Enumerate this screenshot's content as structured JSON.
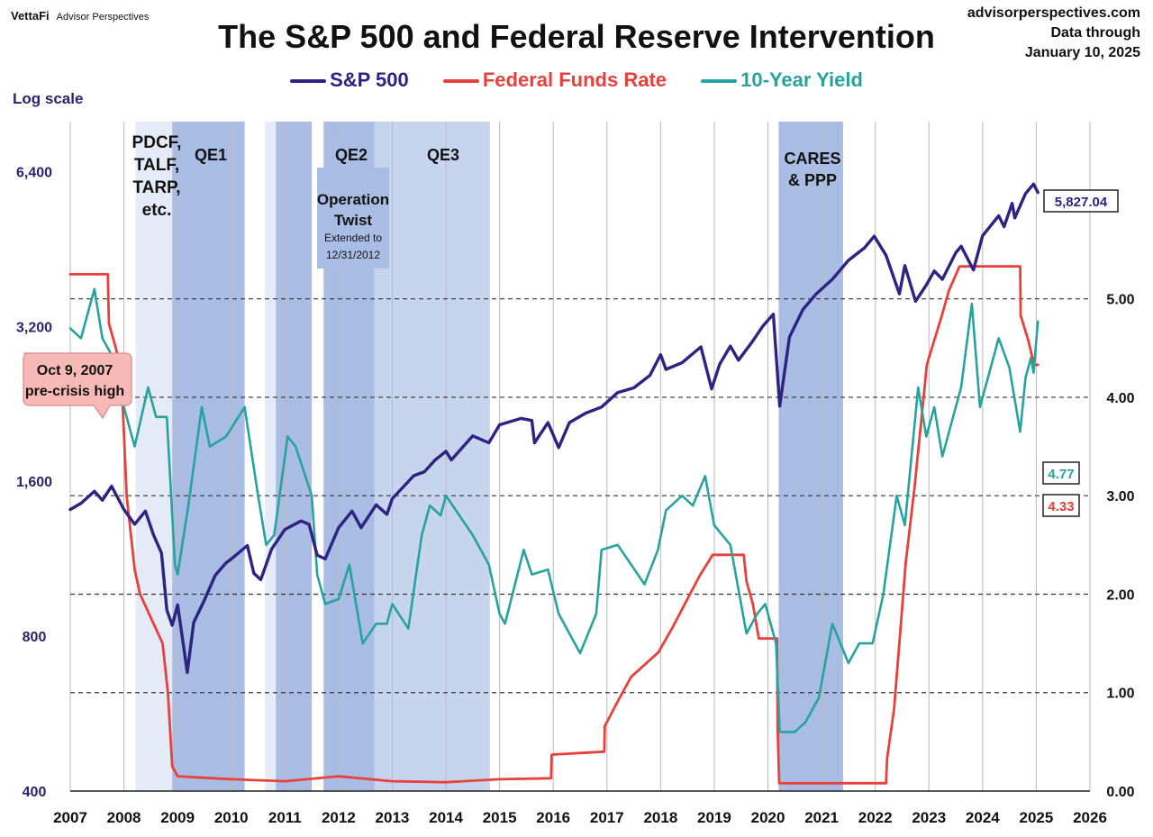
{
  "header": {
    "logo_brand": "VettaFi",
    "logo_sub": "Advisor Perspectives",
    "source_site": "advisorperspectives.com",
    "data_through_label": "Data through",
    "data_through_date": "January 10, 2025",
    "log_scale_label": "Log scale"
  },
  "colors": {
    "sp500": "#2e2382",
    "fed": "#e8403a",
    "yield": "#27a39f",
    "band_light": "#e4eaf6",
    "band_mid": "#c6d4ee",
    "band_dark": "#a9bde4"
  },
  "chart_data": {
    "type": "line",
    "title": "The S&P 500 and Federal Reserve Intervention",
    "x_ticks": [
      "2007",
      "2008",
      "2009",
      "2010",
      "2011",
      "2012",
      "2013",
      "2014",
      "2015",
      "2016",
      "2017",
      "2018",
      "2019",
      "2020",
      "2021",
      "2022",
      "2023",
      "2024",
      "2025",
      "2026"
    ],
    "x_range": [
      2007,
      2026
    ],
    "left_axis": {
      "scale": "log",
      "range": [
        400,
        8000
      ],
      "ticks": [
        "400",
        "800",
        "1,600",
        "3,200",
        "6,400"
      ],
      "tick_values": [
        400,
        800,
        1600,
        3200,
        6400
      ]
    },
    "right_axis": {
      "range": [
        0,
        6.8
      ],
      "ticks": [
        "0.00",
        "1.00",
        "2.00",
        "3.00",
        "4.00",
        "5.00"
      ],
      "tick_values": [
        0,
        1,
        2,
        3,
        4,
        5
      ],
      "dashed_grid": [
        1,
        2,
        3,
        4,
        5
      ]
    },
    "legend": [
      "S&P 500",
      "Federal Funds Rate",
      "10-Year Yield"
    ],
    "bands": [
      {
        "start": 2008.22,
        "end": 2008.9,
        "shade": "light"
      },
      {
        "start": 2008.9,
        "end": 2010.25,
        "shade": "dark"
      },
      {
        "start": 2010.63,
        "end": 2010.83,
        "shade": "light"
      },
      {
        "start": 2010.83,
        "end": 2011.5,
        "shade": "dark"
      },
      {
        "start": 2011.72,
        "end": 2012.67,
        "shade": "dark"
      },
      {
        "start": 2012.67,
        "end": 2014.82,
        "shade": "mid"
      },
      {
        "start": 2020.2,
        "end": 2021.4,
        "shade": "dark"
      }
    ],
    "annotations": {
      "pdcf": [
        "PDCF,",
        "TALF,",
        "TARP,",
        "etc."
      ],
      "qe1": "QE1",
      "qe2": "QE2",
      "qe3": "QE3",
      "twist": [
        "Operation",
        "Twist"
      ],
      "twist_sub": [
        "Extended to",
        "12/31/2012"
      ],
      "cares": [
        "CARES",
        "& PPP"
      ],
      "precrisis": [
        "Oct 9, 2007",
        "pre-crisis high"
      ],
      "end_sp": "5,827.04",
      "end_yield": "4.77",
      "end_fed": "4.33"
    },
    "series": [
      {
        "name": "S&P 500",
        "axis": "left",
        "points": [
          [
            2007.0,
            1410
          ],
          [
            2007.2,
            1450
          ],
          [
            2007.45,
            1530
          ],
          [
            2007.6,
            1470
          ],
          [
            2007.77,
            1565
          ],
          [
            2008.0,
            1410
          ],
          [
            2008.2,
            1320
          ],
          [
            2008.4,
            1400
          ],
          [
            2008.55,
            1260
          ],
          [
            2008.7,
            1160
          ],
          [
            2008.8,
            900
          ],
          [
            2008.9,
            840
          ],
          [
            2009.0,
            920
          ],
          [
            2009.1,
            780
          ],
          [
            2009.18,
            680
          ],
          [
            2009.3,
            850
          ],
          [
            2009.5,
            940
          ],
          [
            2009.7,
            1050
          ],
          [
            2009.9,
            1110
          ],
          [
            2010.0,
            1130
          ],
          [
            2010.3,
            1200
          ],
          [
            2010.42,
            1060
          ],
          [
            2010.55,
            1030
          ],
          [
            2010.75,
            1180
          ],
          [
            2011.0,
            1290
          ],
          [
            2011.3,
            1340
          ],
          [
            2011.45,
            1320
          ],
          [
            2011.6,
            1150
          ],
          [
            2011.75,
            1130
          ],
          [
            2012.0,
            1300
          ],
          [
            2012.25,
            1400
          ],
          [
            2012.42,
            1300
          ],
          [
            2012.7,
            1440
          ],
          [
            2012.9,
            1380
          ],
          [
            2013.0,
            1480
          ],
          [
            2013.4,
            1640
          ],
          [
            2013.6,
            1670
          ],
          [
            2013.8,
            1760
          ],
          [
            2014.0,
            1830
          ],
          [
            2014.1,
            1760
          ],
          [
            2014.5,
            1960
          ],
          [
            2014.8,
            1900
          ],
          [
            2015.0,
            2060
          ],
          [
            2015.4,
            2120
          ],
          [
            2015.6,
            2100
          ],
          [
            2015.65,
            1900
          ],
          [
            2015.9,
            2080
          ],
          [
            2016.1,
            1860
          ],
          [
            2016.3,
            2080
          ],
          [
            2016.6,
            2170
          ],
          [
            2016.9,
            2230
          ],
          [
            2017.2,
            2380
          ],
          [
            2017.5,
            2430
          ],
          [
            2017.8,
            2570
          ],
          [
            2018.0,
            2820
          ],
          [
            2018.1,
            2640
          ],
          [
            2018.4,
            2720
          ],
          [
            2018.75,
            2920
          ],
          [
            2018.95,
            2420
          ],
          [
            2019.1,
            2700
          ],
          [
            2019.3,
            2930
          ],
          [
            2019.45,
            2750
          ],
          [
            2019.7,
            2980
          ],
          [
            2019.9,
            3200
          ],
          [
            2020.1,
            3380
          ],
          [
            2020.22,
            2240
          ],
          [
            2020.4,
            3050
          ],
          [
            2020.65,
            3450
          ],
          [
            2020.9,
            3700
          ],
          [
            2021.2,
            3950
          ],
          [
            2021.5,
            4300
          ],
          [
            2021.8,
            4550
          ],
          [
            2021.98,
            4790
          ],
          [
            2022.2,
            4400
          ],
          [
            2022.45,
            3700
          ],
          [
            2022.55,
            4200
          ],
          [
            2022.75,
            3580
          ],
          [
            2022.95,
            3850
          ],
          [
            2023.1,
            4100
          ],
          [
            2023.25,
            3950
          ],
          [
            2023.5,
            4450
          ],
          [
            2023.6,
            4580
          ],
          [
            2023.83,
            4120
          ],
          [
            2024.0,
            4800
          ],
          [
            2024.3,
            5250
          ],
          [
            2024.4,
            5000
          ],
          [
            2024.55,
            5550
          ],
          [
            2024.6,
            5200
          ],
          [
            2024.8,
            5800
          ],
          [
            2024.95,
            6050
          ],
          [
            2025.03,
            5827
          ]
        ]
      },
      {
        "name": "Federal Funds Rate",
        "axis": "right",
        "points": [
          [
            2007.0,
            5.25
          ],
          [
            2007.7,
            5.25
          ],
          [
            2007.72,
            4.75
          ],
          [
            2007.85,
            4.5
          ],
          [
            2007.95,
            4.25
          ],
          [
            2008.05,
            3.0
          ],
          [
            2008.2,
            2.25
          ],
          [
            2008.3,
            2.0
          ],
          [
            2008.72,
            1.5
          ],
          [
            2008.82,
            1.0
          ],
          [
            2008.9,
            0.25
          ],
          [
            2009.0,
            0.15
          ],
          [
            2010.0,
            0.12
          ],
          [
            2011.0,
            0.1
          ],
          [
            2012.0,
            0.15
          ],
          [
            2013.0,
            0.1
          ],
          [
            2014.0,
            0.09
          ],
          [
            2015.0,
            0.12
          ],
          [
            2015.96,
            0.13
          ],
          [
            2015.97,
            0.37
          ],
          [
            2016.95,
            0.4
          ],
          [
            2016.96,
            0.66
          ],
          [
            2017.2,
            0.91
          ],
          [
            2017.45,
            1.16
          ],
          [
            2017.96,
            1.41
          ],
          [
            2018.22,
            1.66
          ],
          [
            2018.46,
            1.91
          ],
          [
            2018.72,
            2.18
          ],
          [
            2018.97,
            2.4
          ],
          [
            2019.55,
            2.4
          ],
          [
            2019.6,
            2.13
          ],
          [
            2019.72,
            1.9
          ],
          [
            2019.83,
            1.55
          ],
          [
            2020.17,
            1.55
          ],
          [
            2020.18,
            0.65
          ],
          [
            2020.21,
            0.08
          ],
          [
            2021.0,
            0.08
          ],
          [
            2022.2,
            0.08
          ],
          [
            2022.22,
            0.33
          ],
          [
            2022.35,
            0.83
          ],
          [
            2022.46,
            1.58
          ],
          [
            2022.57,
            2.33
          ],
          [
            2022.73,
            3.08
          ],
          [
            2022.87,
            3.83
          ],
          [
            2022.96,
            4.33
          ],
          [
            2023.1,
            4.58
          ],
          [
            2023.24,
            4.83
          ],
          [
            2023.37,
            5.08
          ],
          [
            2023.57,
            5.33
          ],
          [
            2024.7,
            5.33
          ],
          [
            2024.71,
            4.83
          ],
          [
            2024.85,
            4.58
          ],
          [
            2024.96,
            4.33
          ],
          [
            2025.03,
            4.33
          ]
        ]
      },
      {
        "name": "10-Year Yield",
        "axis": "right",
        "points": [
          [
            2007.0,
            4.7
          ],
          [
            2007.2,
            4.6
          ],
          [
            2007.45,
            5.1
          ],
          [
            2007.6,
            4.6
          ],
          [
            2007.8,
            4.4
          ],
          [
            2008.0,
            3.9
          ],
          [
            2008.2,
            3.5
          ],
          [
            2008.45,
            4.1
          ],
          [
            2008.6,
            3.8
          ],
          [
            2008.8,
            3.8
          ],
          [
            2008.95,
            2.3
          ],
          [
            2009.0,
            2.2
          ],
          [
            2009.2,
            2.9
          ],
          [
            2009.45,
            3.9
          ],
          [
            2009.6,
            3.5
          ],
          [
            2009.9,
            3.6
          ],
          [
            2010.25,
            3.9
          ],
          [
            2010.5,
            3.0
          ],
          [
            2010.65,
            2.5
          ],
          [
            2010.8,
            2.6
          ],
          [
            2011.05,
            3.6
          ],
          [
            2011.2,
            3.5
          ],
          [
            2011.5,
            3.0
          ],
          [
            2011.6,
            2.2
          ],
          [
            2011.75,
            1.9
          ],
          [
            2012.0,
            1.95
          ],
          [
            2012.2,
            2.3
          ],
          [
            2012.45,
            1.5
          ],
          [
            2012.7,
            1.7
          ],
          [
            2012.9,
            1.7
          ],
          [
            2013.0,
            1.9
          ],
          [
            2013.3,
            1.65
          ],
          [
            2013.55,
            2.6
          ],
          [
            2013.7,
            2.9
          ],
          [
            2013.9,
            2.8
          ],
          [
            2014.0,
            3.0
          ],
          [
            2014.5,
            2.6
          ],
          [
            2014.8,
            2.3
          ],
          [
            2015.0,
            1.8
          ],
          [
            2015.1,
            1.7
          ],
          [
            2015.45,
            2.45
          ],
          [
            2015.6,
            2.2
          ],
          [
            2015.9,
            2.25
          ],
          [
            2016.1,
            1.8
          ],
          [
            2016.5,
            1.4
          ],
          [
            2016.8,
            1.8
          ],
          [
            2016.9,
            2.45
          ],
          [
            2017.2,
            2.5
          ],
          [
            2017.7,
            2.1
          ],
          [
            2017.95,
            2.45
          ],
          [
            2018.1,
            2.85
          ],
          [
            2018.4,
            3.0
          ],
          [
            2018.6,
            2.9
          ],
          [
            2018.83,
            3.2
          ],
          [
            2019.0,
            2.7
          ],
          [
            2019.3,
            2.5
          ],
          [
            2019.6,
            1.6
          ],
          [
            2019.8,
            1.8
          ],
          [
            2019.95,
            1.9
          ],
          [
            2020.15,
            1.5
          ],
          [
            2020.22,
            0.6
          ],
          [
            2020.5,
            0.6
          ],
          [
            2020.7,
            0.7
          ],
          [
            2020.95,
            0.95
          ],
          [
            2021.2,
            1.7
          ],
          [
            2021.5,
            1.3
          ],
          [
            2021.7,
            1.5
          ],
          [
            2021.95,
            1.5
          ],
          [
            2022.15,
            2.0
          ],
          [
            2022.4,
            3.0
          ],
          [
            2022.55,
            2.7
          ],
          [
            2022.8,
            4.1
          ],
          [
            2022.95,
            3.6
          ],
          [
            2023.1,
            3.9
          ],
          [
            2023.25,
            3.4
          ],
          [
            2023.4,
            3.7
          ],
          [
            2023.6,
            4.1
          ],
          [
            2023.8,
            4.95
          ],
          [
            2023.95,
            3.9
          ],
          [
            2024.1,
            4.2
          ],
          [
            2024.3,
            4.6
          ],
          [
            2024.5,
            4.3
          ],
          [
            2024.7,
            3.65
          ],
          [
            2024.8,
            4.2
          ],
          [
            2024.9,
            4.4
          ],
          [
            2024.95,
            4.25
          ],
          [
            2025.03,
            4.77
          ]
        ]
      }
    ]
  }
}
